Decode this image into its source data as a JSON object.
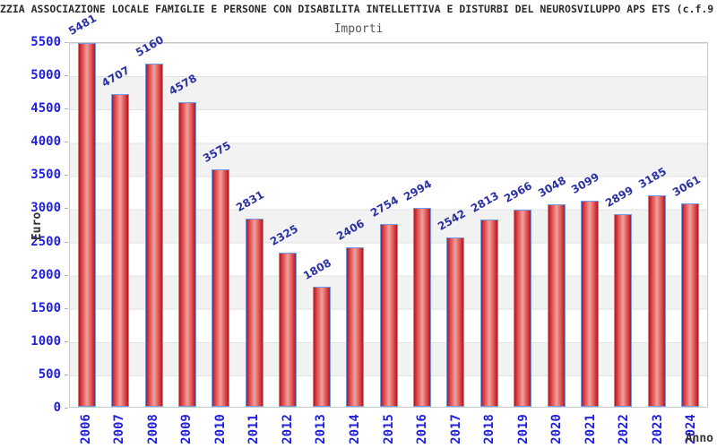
{
  "header": {
    "title": "ZZIA ASSOCIAZIONE LOCALE FAMIGLIE E PERSONE CON DISABILITA INTELLETTIVA E DISTURBI DEL NEUROSVILUPPO APS ETS (c.f.9",
    "subtitle": "Importi"
  },
  "chart_data": {
    "type": "bar",
    "title": "Importi",
    "xlabel": "Anno",
    "ylabel": "Euro",
    "categories": [
      "2006",
      "2007",
      "2008",
      "2009",
      "2010",
      "2011",
      "2012",
      "2013",
      "2014",
      "2015",
      "2016",
      "2017",
      "2018",
      "2019",
      "2020",
      "2021",
      "2022",
      "2023",
      "2024"
    ],
    "values": [
      5481,
      4707,
      5160,
      4578,
      3575,
      2831,
      2325,
      1808,
      2406,
      2754,
      2994,
      2542,
      2813,
      2966,
      3048,
      3099,
      2899,
      3185,
      3061
    ],
    "ylim": [
      0,
      5500
    ],
    "y_ticks": [
      0,
      500,
      1000,
      1500,
      2000,
      2500,
      3000,
      3500,
      4000,
      4500,
      5000,
      5500
    ],
    "grid": "horizontal gridlines with alternating gray bands",
    "legend": "none",
    "value_labels": "above bars, rotated -30deg"
  },
  "colors": {
    "bar_edge_dark": "#b51722",
    "bar_mid": "#e05050",
    "bar_center_light": "#f0a0a0",
    "bar_border": "#6f9be8",
    "axis_tick_text": "#2121dd",
    "value_label_text": "#2b31a5",
    "band_gray": "#f2f2f2",
    "gridline": "#e2e2e2",
    "title_text": "#2b2b2b",
    "subtitle_text": "#555555",
    "axis_name_text": "#333333"
  }
}
